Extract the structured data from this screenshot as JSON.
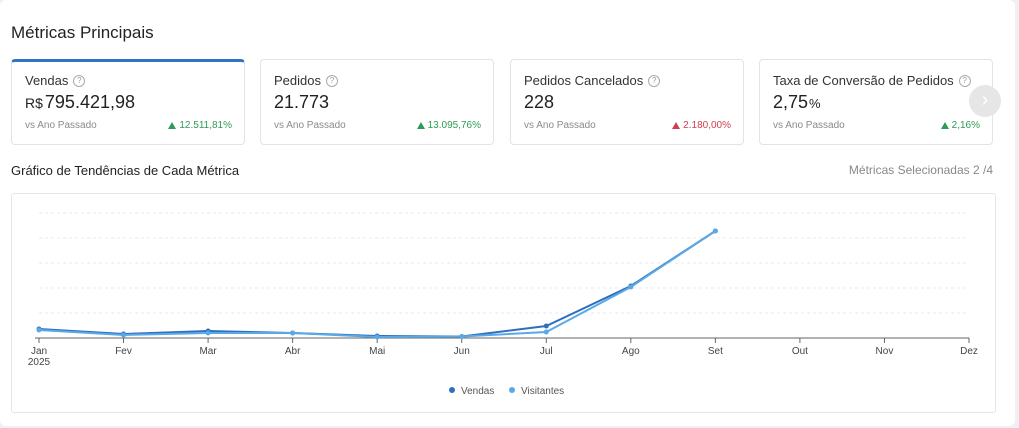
{
  "header": {
    "title": "Métricas Principais"
  },
  "cards": [
    {
      "title": "Vendas",
      "help": "?",
      "prefix": "R$",
      "value": "795.421,98",
      "suffix": "",
      "sub": "vs Ano Passado",
      "change": "12.511,81%",
      "direction": "up"
    },
    {
      "title": "Pedidos",
      "help": "?",
      "prefix": "",
      "value": "21.773",
      "suffix": "",
      "sub": "vs Ano Passado",
      "change": "13.095,76%",
      "direction": "up"
    },
    {
      "title": "Pedidos Cancelados",
      "help": "?",
      "prefix": "",
      "value": "228",
      "suffix": "",
      "sub": "vs Ano Passado",
      "change": "2.180,00%",
      "direction": "down"
    },
    {
      "title": "Taxa de Conversão de Pedidos",
      "help": "?",
      "prefix": "",
      "value": "2,75",
      "suffix": "%",
      "sub": "vs Ano Passado",
      "change": "2,16%",
      "direction": "up"
    }
  ],
  "next_icon": "chevron-right-icon",
  "trend": {
    "title": "Gráfico de Tendências de Cada Métrica",
    "selected": "Métricas Selecionadas 2 /4"
  },
  "colors": {
    "accent": "#2e74c9",
    "up": "#2e9b57",
    "down": "#d23e4e",
    "vendas": "#2e6fbf",
    "visitantes": "#5aa9e6"
  },
  "chart_data": {
    "type": "line",
    "categories": [
      "Jan",
      "Fev",
      "Mar",
      "Abr",
      "Mai",
      "Jun",
      "Jul",
      "Ago",
      "Set",
      "Out",
      "Nov",
      "Dez"
    ],
    "year_label": "2025",
    "ylim": [
      0,
      100
    ],
    "grid": true,
    "legend_position": "bottom",
    "series": [
      {
        "name": "Vendas",
        "color": "#2e6fbf",
        "values": [
          7.2,
          3.2,
          5.6,
          4.0,
          1.6,
          1.2,
          9.6,
          41.6,
          85.6,
          null,
          null,
          null
        ]
      },
      {
        "name": "Visitantes",
        "color": "#5aa9e6",
        "values": [
          6.4,
          2.4,
          4.0,
          4.0,
          0.8,
          1.2,
          4.8,
          40.8,
          85.6,
          null,
          null,
          null
        ]
      }
    ]
  }
}
